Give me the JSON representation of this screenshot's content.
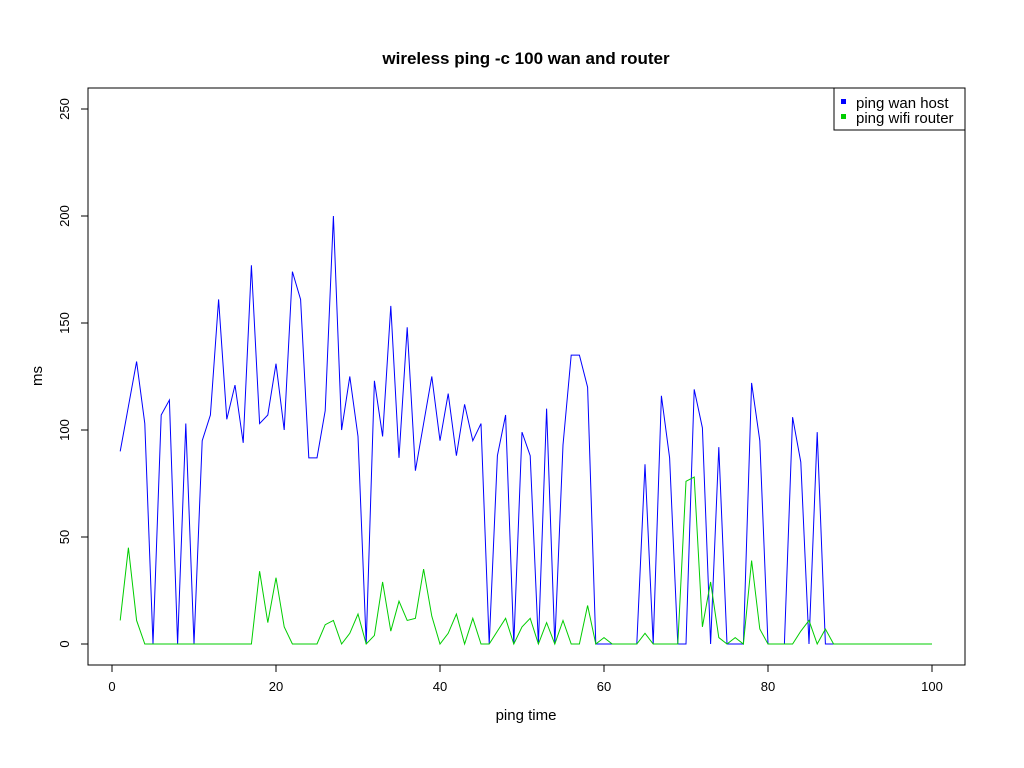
{
  "chart_data": {
    "type": "line",
    "title": "wireless ping -c 100 wan and router",
    "xlabel": "ping time",
    "ylabel": "ms",
    "xlim": [
      1,
      100
    ],
    "ylim": [
      0,
      250
    ],
    "x_ticks": [
      0,
      20,
      40,
      60,
      80,
      100
    ],
    "y_ticks": [
      0,
      50,
      100,
      150,
      200,
      250
    ],
    "x_tick_labels": [
      "0",
      "20",
      "40",
      "60",
      "80",
      "100"
    ],
    "y_tick_labels": [
      "0",
      "50",
      "100",
      "150",
      "200",
      "250"
    ],
    "legend_position": "top-right",
    "grid": false,
    "x": [
      1,
      2,
      3,
      4,
      5,
      6,
      7,
      8,
      9,
      10,
      11,
      12,
      13,
      14,
      15,
      16,
      17,
      18,
      19,
      20,
      21,
      22,
      23,
      24,
      25,
      26,
      27,
      28,
      29,
      30,
      31,
      32,
      33,
      34,
      35,
      36,
      37,
      38,
      39,
      40,
      41,
      42,
      43,
      44,
      45,
      46,
      47,
      48,
      49,
      50,
      51,
      52,
      53,
      54,
      55,
      56,
      57,
      58,
      59,
      60,
      61,
      62,
      63,
      64,
      65,
      66,
      67,
      68,
      69,
      70,
      71,
      72,
      73,
      74,
      75,
      76,
      77,
      78,
      79,
      80,
      81,
      82,
      83,
      84,
      85,
      86,
      87,
      88,
      89,
      90,
      91,
      92,
      93,
      94,
      95,
      96,
      97,
      98,
      99,
      100
    ],
    "series": [
      {
        "name": "ping wan host",
        "color": "#0000ff",
        "values": [
          90,
          111,
          132,
          103,
          0,
          107,
          114,
          0,
          103,
          0,
          95,
          107,
          161,
          105,
          121,
          94,
          177,
          103,
          107,
          131,
          100,
          174,
          161,
          87,
          87,
          109,
          200,
          100,
          125,
          97,
          0,
          123,
          97,
          158,
          87,
          148,
          81,
          103,
          125,
          95,
          117,
          88,
          112,
          95,
          103,
          0,
          88,
          107,
          0,
          99,
          88,
          0,
          110,
          0,
          93,
          135,
          135,
          120,
          0,
          0,
          0,
          0,
          0,
          0,
          84,
          0,
          116,
          87,
          0,
          0,
          119,
          101,
          0,
          92,
          0,
          0,
          0,
          122,
          95,
          0,
          0,
          0,
          106,
          85,
          0,
          99,
          0,
          0,
          0,
          0,
          0,
          0,
          0,
          0,
          0,
          0,
          0,
          0,
          0,
          0
        ]
      },
      {
        "name": "ping wifi router",
        "color": "#00cd00",
        "values": [
          11,
          45,
          11,
          0,
          0,
          0,
          0,
          0,
          0,
          0,
          0,
          0,
          0,
          0,
          0,
          0,
          0,
          34,
          10,
          31,
          8,
          0,
          0,
          0,
          0,
          9,
          11,
          0,
          5,
          14,
          0,
          4,
          29,
          6,
          20,
          11,
          12,
          35,
          13,
          0,
          5,
          14,
          0,
          12,
          0,
          0,
          6,
          12,
          0,
          8,
          12,
          0,
          10,
          0,
          11,
          0,
          0,
          18,
          0,
          3,
          0,
          0,
          0,
          0,
          5,
          0,
          0,
          0,
          0,
          76,
          78,
          8,
          29,
          3,
          0,
          3,
          0,
          39,
          7,
          0,
          0,
          0,
          0,
          6,
          11,
          0,
          7,
          0,
          0,
          0,
          0,
          0,
          0,
          0,
          0,
          0,
          0,
          0,
          0,
          0
        ]
      }
    ]
  }
}
